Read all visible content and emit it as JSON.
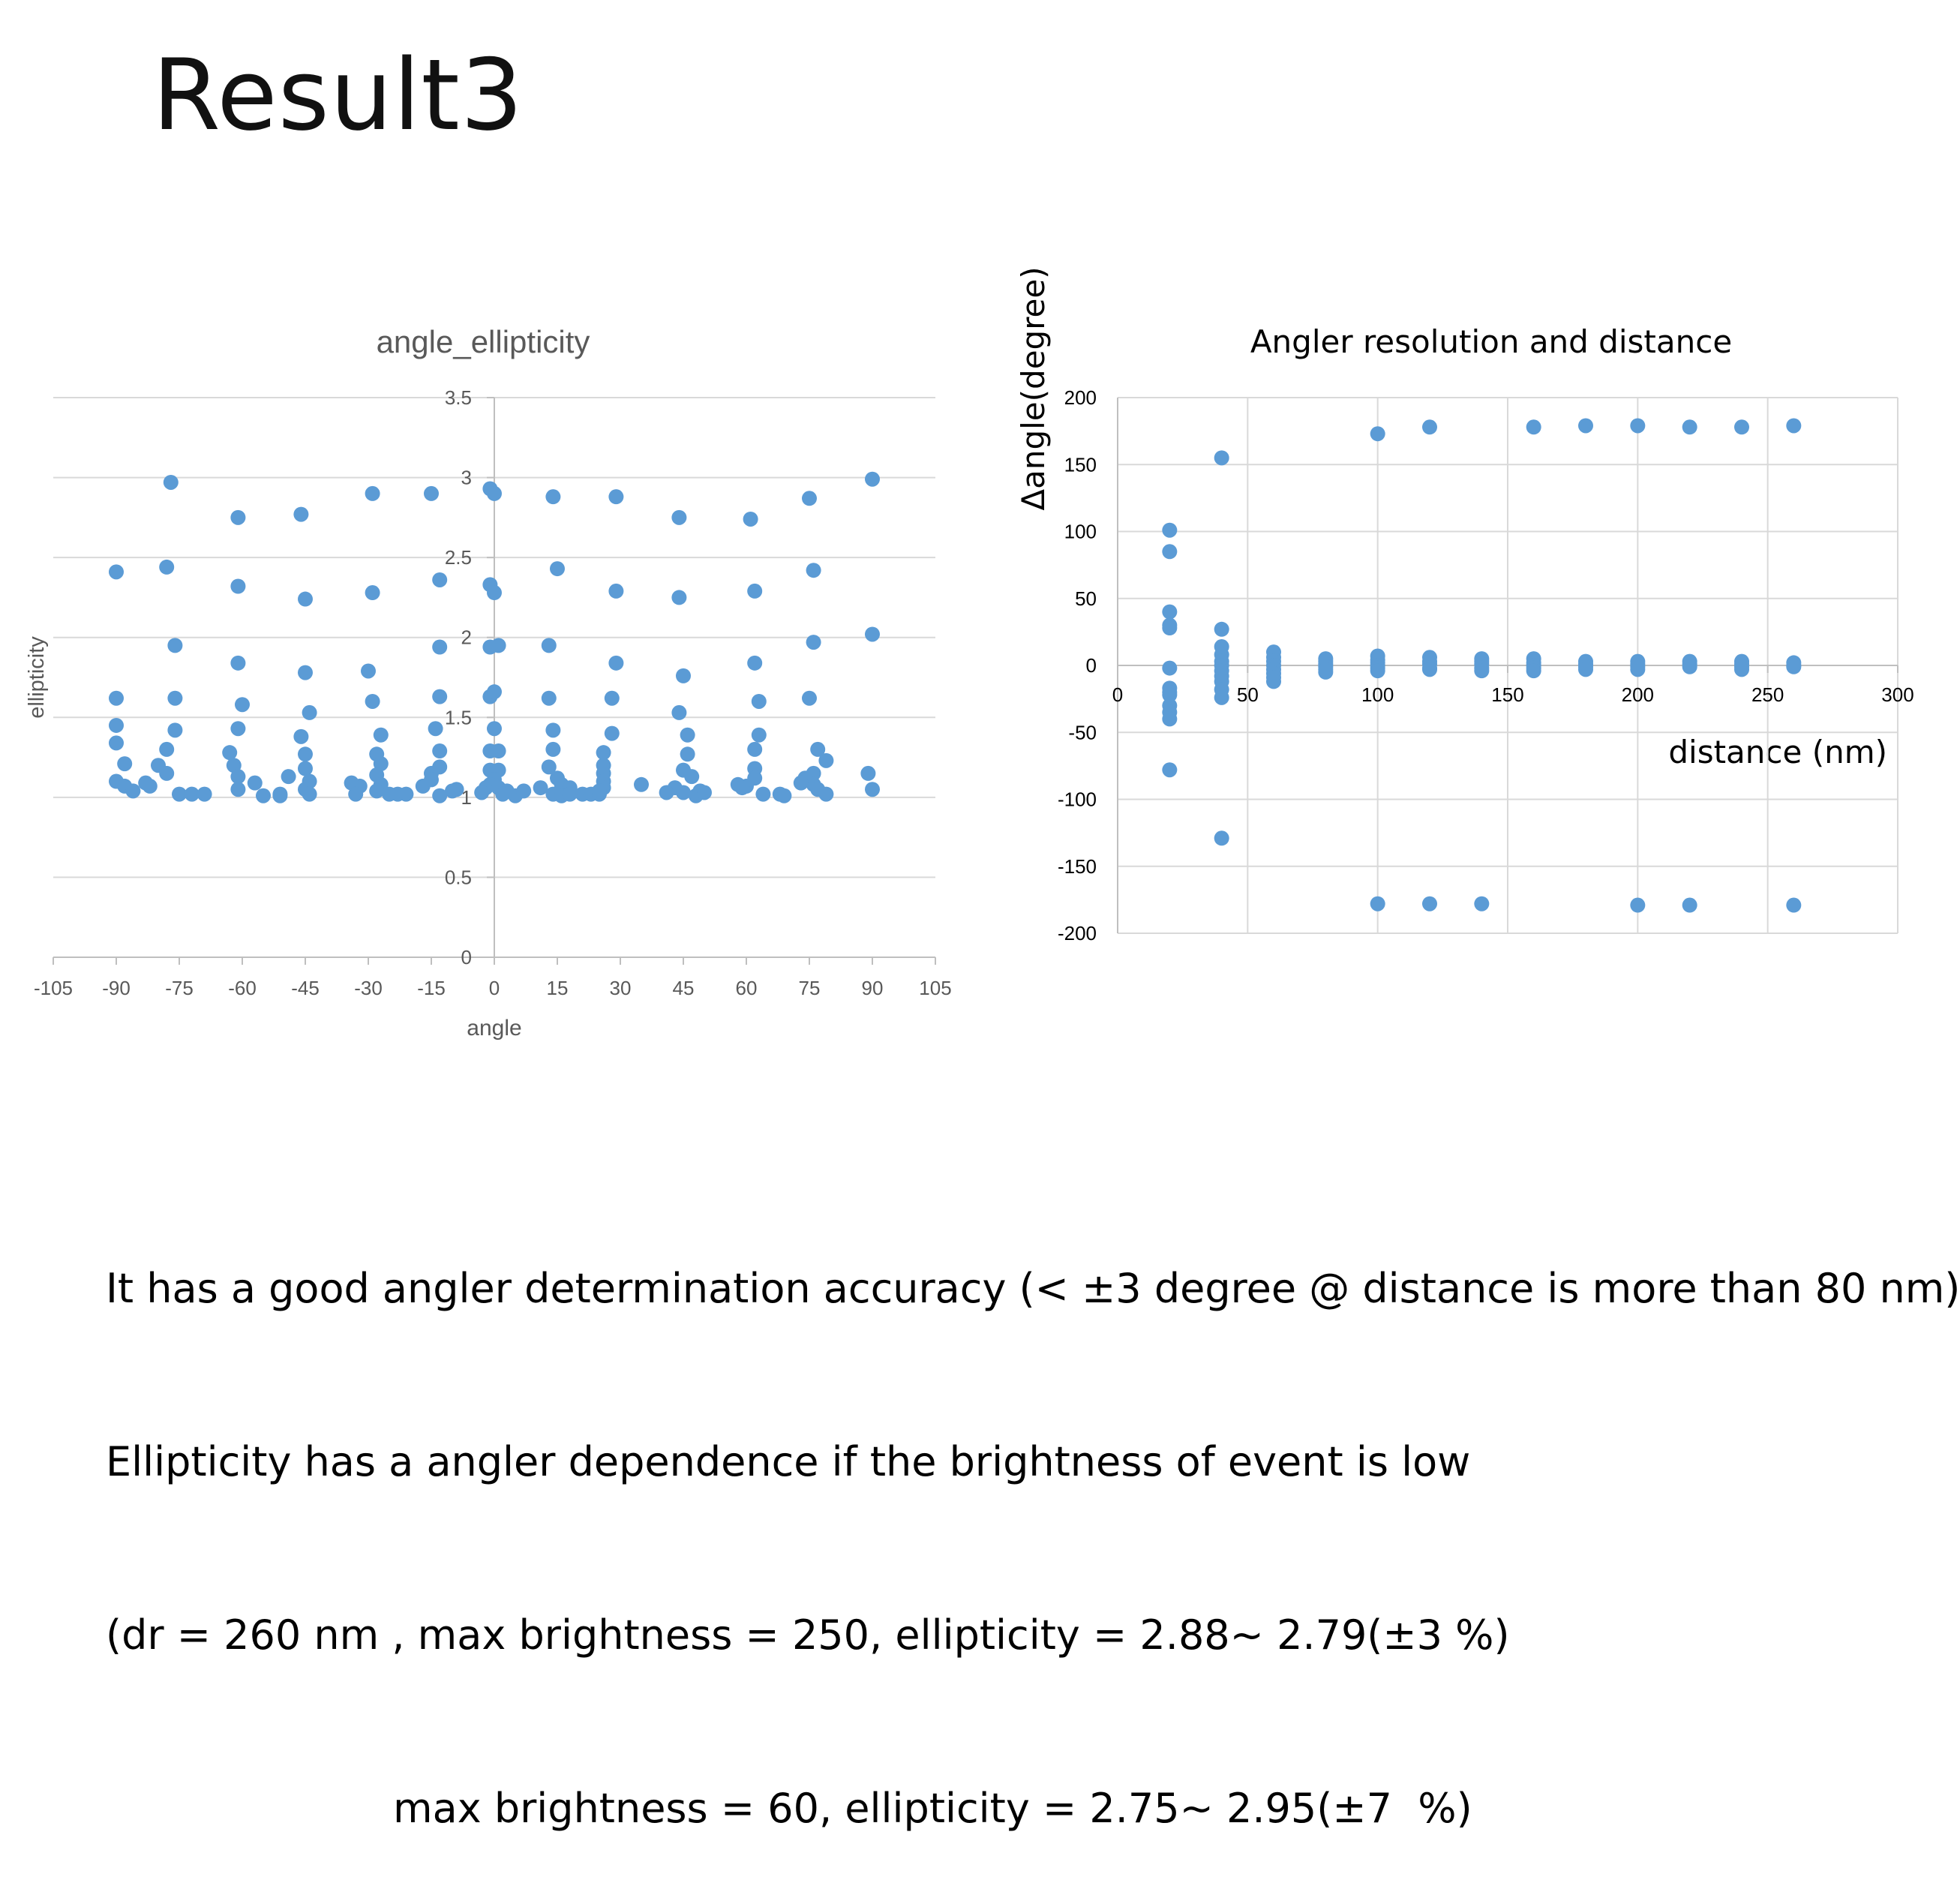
{
  "slide": {
    "title": "Result3",
    "notes": [
      "It has a good angler determination accuracy (< ±3 degree @ distance is more than 80 nm)",
      "Ellipticity has a angler dependence if the brightness of event is low",
      "(dr = 260 nm , max brightness = 250, ellipticity = 2.88~ 2.79(±3 %)",
      "max brightness = 60, ellipticity = 2.75~ 2.95(±7  %)"
    ]
  },
  "colors": {
    "marker": "#5B9BD5",
    "grid": "#D9D9D9",
    "axis": "#BFBFBF",
    "text": "#595959"
  },
  "chart_data": [
    {
      "type": "scatter",
      "title": "angle_ellipticity",
      "xlabel": "angle",
      "ylabel": "ellipticity",
      "xlim": [
        -105,
        105
      ],
      "ylim": [
        0,
        3.5
      ],
      "x_ticks": [
        -105,
        -90,
        -75,
        -60,
        -45,
        -30,
        -15,
        0,
        15,
        30,
        45,
        60,
        75,
        90,
        105
      ],
      "y_ticks": [
        0,
        0.5,
        1,
        1.5,
        2,
        2.5,
        3,
        3.5
      ],
      "grid": "horizontal",
      "legend": "none",
      "points": [
        [
          -90,
          2.41
        ],
        [
          -90,
          1.62
        ],
        [
          -90,
          1.45
        ],
        [
          -90,
          1.34
        ],
        [
          -88,
          1.21
        ],
        [
          -90,
          1.1
        ],
        [
          -88,
          1.07
        ],
        [
          -86,
          1.04
        ],
        [
          -77,
          2.97
        ],
        [
          -78,
          2.44
        ],
        [
          -76,
          1.95
        ],
        [
          -76,
          1.62
        ],
        [
          -76,
          1.42
        ],
        [
          -78,
          1.3
        ],
        [
          -80,
          1.2
        ],
        [
          -78,
          1.15
        ],
        [
          -83,
          1.09
        ],
        [
          -82,
          1.07
        ],
        [
          -75,
          1.02
        ],
        [
          -72,
          1.02
        ],
        [
          -69,
          1.02
        ],
        [
          -61,
          2.75
        ],
        [
          -61,
          2.32
        ],
        [
          -61,
          1.84
        ],
        [
          -60,
          1.58
        ],
        [
          -61,
          1.43
        ],
        [
          -63,
          1.28
        ],
        [
          -62,
          1.2
        ],
        [
          -61,
          1.13
        ],
        [
          -61,
          1.05
        ],
        [
          -57,
          1.09
        ],
        [
          -55,
          1.01
        ],
        [
          -51,
          1.02
        ],
        [
          -51,
          1.01
        ],
        [
          -46,
          2.77
        ],
        [
          -45,
          2.24
        ],
        [
          -45,
          1.78
        ],
        [
          -44,
          1.53
        ],
        [
          -46,
          1.38
        ],
        [
          -45,
          1.27
        ],
        [
          -45,
          1.18
        ],
        [
          -44,
          1.1
        ],
        [
          -45,
          1.05
        ],
        [
          -44,
          1.02
        ],
        [
          -49,
          1.13
        ],
        [
          -29,
          2.9
        ],
        [
          -29,
          2.28
        ],
        [
          -30,
          1.79
        ],
        [
          -29,
          1.6
        ],
        [
          -27,
          1.39
        ],
        [
          -28,
          1.27
        ],
        [
          -27,
          1.21
        ],
        [
          -28,
          1.14
        ],
        [
          -27,
          1.08
        ],
        [
          -28,
          1.04
        ],
        [
          -32,
          1.07
        ],
        [
          -34,
          1.09
        ],
        [
          -33,
          1.02
        ],
        [
          -25,
          1.02
        ],
        [
          -23,
          1.02
        ],
        [
          -21,
          1.02
        ],
        [
          -15,
          2.9
        ],
        [
          -13,
          2.36
        ],
        [
          -13,
          1.94
        ],
        [
          -13,
          1.63
        ],
        [
          -14,
          1.43
        ],
        [
          -13,
          1.29
        ],
        [
          -13,
          1.19
        ],
        [
          -15,
          1.15
        ],
        [
          -15,
          1.11
        ],
        [
          -13,
          1.01
        ],
        [
          -9,
          1.05
        ],
        [
          -10,
          1.04
        ],
        [
          -17,
          1.07
        ],
        [
          -1,
          2.93
        ],
        [
          0,
          2.9
        ],
        [
          -1,
          2.33
        ],
        [
          0,
          2.28
        ],
        [
          -1,
          1.94
        ],
        [
          1,
          1.95
        ],
        [
          -1,
          1.63
        ],
        [
          0,
          1.66
        ],
        [
          0,
          1.43
        ],
        [
          -1,
          1.29
        ],
        [
          1,
          1.29
        ],
        [
          -1,
          1.17
        ],
        [
          1,
          1.17
        ],
        [
          0,
          1.11
        ],
        [
          -1,
          1.08
        ],
        [
          -2,
          1.06
        ],
        [
          1,
          1.06
        ],
        [
          3,
          1.04
        ],
        [
          2,
          1.02
        ],
        [
          5,
          1.01
        ],
        [
          7,
          1.04
        ],
        [
          -3,
          1.03
        ],
        [
          14,
          2.88
        ],
        [
          15,
          2.43
        ],
        [
          13,
          1.95
        ],
        [
          13,
          1.62
        ],
        [
          14,
          1.42
        ],
        [
          14,
          1.3
        ],
        [
          13,
          1.19
        ],
        [
          15,
          1.12
        ],
        [
          16,
          1.08
        ],
        [
          18,
          1.06
        ],
        [
          11,
          1.06
        ],
        [
          14,
          1.02
        ],
        [
          16,
          1.01
        ],
        [
          18,
          1.02
        ],
        [
          21,
          1.02
        ],
        [
          23,
          1.02
        ],
        [
          25,
          1.02
        ],
        [
          29,
          2.88
        ],
        [
          29,
          2.29
        ],
        [
          29,
          1.84
        ],
        [
          28,
          1.62
        ],
        [
          28,
          1.4
        ],
        [
          26,
          1.28
        ],
        [
          26,
          1.2
        ],
        [
          26,
          1.15
        ],
        [
          26,
          1.1
        ],
        [
          26,
          1.06
        ],
        [
          25,
          1.04
        ],
        [
          35,
          1.08
        ],
        [
          44,
          2.75
        ],
        [
          44,
          2.25
        ],
        [
          45,
          1.76
        ],
        [
          44,
          1.53
        ],
        [
          46,
          1.39
        ],
        [
          46,
          1.27
        ],
        [
          45,
          1.17
        ],
        [
          47,
          1.13
        ],
        [
          43,
          1.06
        ],
        [
          41,
          1.03
        ],
        [
          45,
          1.03
        ],
        [
          48,
          1.01
        ],
        [
          49,
          1.04
        ],
        [
          50,
          1.03
        ],
        [
          61,
          2.74
        ],
        [
          62,
          2.29
        ],
        [
          62,
          1.84
        ],
        [
          63,
          1.6
        ],
        [
          63,
          1.39
        ],
        [
          62,
          1.3
        ],
        [
          62,
          1.18
        ],
        [
          62,
          1.12
        ],
        [
          60,
          1.07
        ],
        [
          58,
          1.08
        ],
        [
          59,
          1.06
        ],
        [
          64,
          1.02
        ],
        [
          68,
          1.02
        ],
        [
          69,
          1.01
        ],
        [
          75,
          2.87
        ],
        [
          76,
          2.42
        ],
        [
          76,
          1.97
        ],
        [
          75,
          1.62
        ],
        [
          77,
          1.3
        ],
        [
          79,
          1.23
        ],
        [
          76,
          1.15
        ],
        [
          74,
          1.12
        ],
        [
          76,
          1.08
        ],
        [
          73,
          1.09
        ],
        [
          77,
          1.05
        ],
        [
          79,
          1.02
        ],
        [
          90,
          2.99
        ],
        [
          90,
          2.02
        ],
        [
          89,
          1.15
        ],
        [
          90,
          1.05
        ]
      ]
    },
    {
      "type": "scatter",
      "title": "Angler resolution and distance",
      "xlabel": "distance (nm)",
      "ylabel": "Δangle(degree)",
      "xlim": [
        0,
        300
      ],
      "ylim": [
        -200,
        200
      ],
      "x_ticks": [
        0,
        50,
        100,
        150,
        200,
        250,
        300
      ],
      "y_ticks": [
        -200,
        -150,
        -100,
        -50,
        0,
        50,
        100,
        150,
        200
      ],
      "grid": "both",
      "legend": "none",
      "points": [
        [
          20,
          101
        ],
        [
          20,
          85
        ],
        [
          20,
          40
        ],
        [
          20,
          30
        ],
        [
          20,
          28
        ],
        [
          20,
          -2
        ],
        [
          20,
          -17
        ],
        [
          20,
          -20
        ],
        [
          20,
          -22
        ],
        [
          20,
          -30
        ],
        [
          20,
          -35
        ],
        [
          20,
          -40
        ],
        [
          20,
          -78
        ],
        [
          40,
          155
        ],
        [
          40,
          27
        ],
        [
          40,
          14
        ],
        [
          40,
          8
        ],
        [
          40,
          3
        ],
        [
          40,
          0
        ],
        [
          40,
          -4
        ],
        [
          40,
          -8
        ],
        [
          40,
          -12
        ],
        [
          40,
          -18
        ],
        [
          40,
          -24
        ],
        [
          40,
          -129
        ],
        [
          60,
          10
        ],
        [
          60,
          6
        ],
        [
          60,
          3
        ],
        [
          60,
          0
        ],
        [
          60,
          -3
        ],
        [
          60,
          -6
        ],
        [
          60,
          -9
        ],
        [
          60,
          -12
        ],
        [
          80,
          5
        ],
        [
          80,
          3
        ],
        [
          80,
          1
        ],
        [
          80,
          -1
        ],
        [
          80,
          -3
        ],
        [
          80,
          -5
        ],
        [
          100,
          173
        ],
        [
          100,
          7
        ],
        [
          100,
          4
        ],
        [
          100,
          2
        ],
        [
          100,
          0
        ],
        [
          100,
          -2
        ],
        [
          100,
          -4
        ],
        [
          100,
          -178
        ],
        [
          120,
          178
        ],
        [
          120,
          6
        ],
        [
          120,
          3
        ],
        [
          120,
          1
        ],
        [
          120,
          -2
        ],
        [
          120,
          -3
        ],
        [
          120,
          -178
        ],
        [
          140,
          5
        ],
        [
          140,
          3
        ],
        [
          140,
          1
        ],
        [
          140,
          -2
        ],
        [
          140,
          -4
        ],
        [
          140,
          -178
        ],
        [
          160,
          178
        ],
        [
          160,
          5
        ],
        [
          160,
          2
        ],
        [
          160,
          0
        ],
        [
          160,
          -2
        ],
        [
          160,
          -4
        ],
        [
          180,
          179
        ],
        [
          180,
          3
        ],
        [
          180,
          1
        ],
        [
          180,
          -1
        ],
        [
          180,
          -3
        ],
        [
          200,
          179
        ],
        [
          200,
          3
        ],
        [
          200,
          1
        ],
        [
          200,
          -1
        ],
        [
          200,
          -3
        ],
        [
          200,
          -179
        ],
        [
          220,
          178
        ],
        [
          220,
          3
        ],
        [
          220,
          1
        ],
        [
          220,
          -1
        ],
        [
          220,
          -179
        ],
        [
          240,
          178
        ],
        [
          240,
          3
        ],
        [
          240,
          1
        ],
        [
          240,
          -1
        ],
        [
          240,
          -3
        ],
        [
          260,
          179
        ],
        [
          260,
          2
        ],
        [
          260,
          0
        ],
        [
          260,
          -1
        ],
        [
          260,
          -179
        ]
      ]
    }
  ]
}
